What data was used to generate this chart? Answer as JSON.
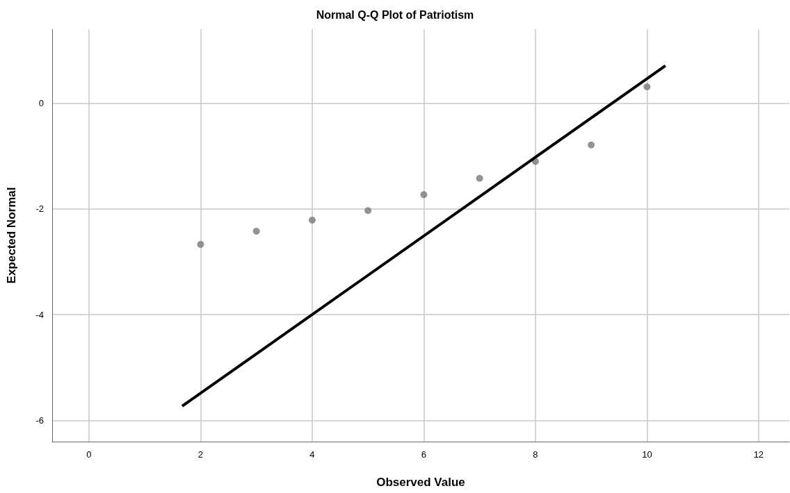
{
  "chart_data": {
    "type": "scatter",
    "title": "Normal Q-Q Plot of Patriotism",
    "xlabel": "Observed Value",
    "ylabel": "Expected Normal",
    "series": [
      {
        "color": "#787878",
        "marker": "circle",
        "x": [
          2,
          3,
          4,
          5,
          6,
          7,
          8,
          9,
          10
        ],
        "values": [
          -2.67,
          -2.42,
          -2.21,
          -2.03,
          -1.73,
          -1.42,
          -1.1,
          -0.79,
          0.31
        ]
      },
      {
        "type": "line",
        "color": "#000000",
        "marker": "none",
        "line_style": "solid",
        "x": [
          1.67,
          10.33
        ],
        "values": [
          -5.73,
          0.71
        ]
      }
    ],
    "xlim": [
      -0.66,
      12.55
    ],
    "ylim": [
      -6.4,
      1.4
    ],
    "xticks": [
      0,
      2,
      4,
      6,
      8,
      10,
      12
    ],
    "yticks": [
      -6,
      -4,
      -2,
      0
    ],
    "grid": true
  }
}
